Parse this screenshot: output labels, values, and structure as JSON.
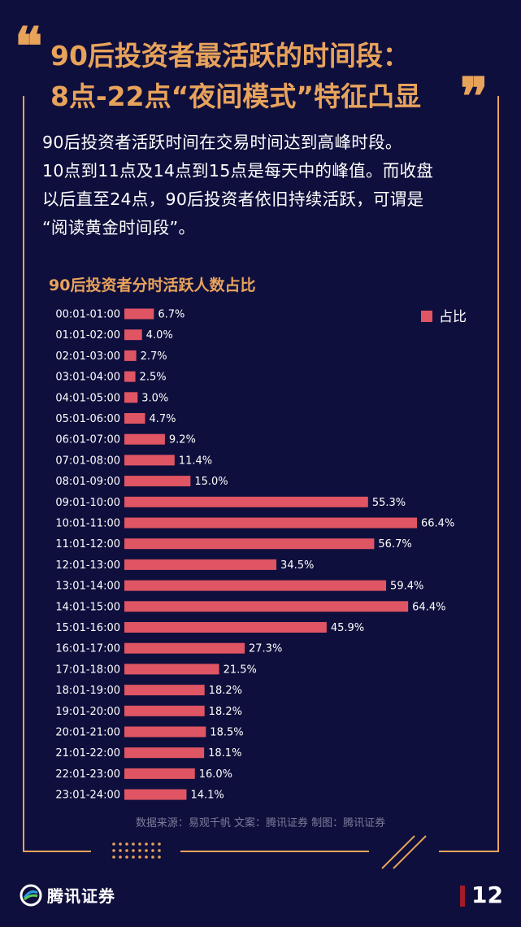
{
  "title": {
    "line1": "90后投资者最活跃的时间段：",
    "line2": "8点-22点“夜间模式”特征凸显"
  },
  "intro_lines": [
    "90后投资者活跃时间在交易时间达到高峰时段。",
    "10点到11点及14点到15点是每天中的峰值。而收盘",
    "以后直至24点，90后投资者依旧持续活跃，可谓是",
    "“阅读黄金时间段”。"
  ],
  "chart_data": {
    "type": "bar",
    "orientation": "horizontal",
    "title": "90后投资者分时活跃人数占比",
    "legend": {
      "label": "占比",
      "position": "top-right"
    },
    "categories": [
      "00:01-01:00",
      "01:01-02:00",
      "02:01-03:00",
      "03:01-04:00",
      "04:01-05:00",
      "05:01-06:00",
      "06:01-07:00",
      "07:01-08:00",
      "08:01-09:00",
      "09:01-10:00",
      "10:01-11:00",
      "11:01-12:00",
      "12:01-13:00",
      "13:01-14:00",
      "14:01-15:00",
      "15:01-16:00",
      "16:01-17:00",
      "17:01-18:00",
      "18:01-19:00",
      "19:01-20:00",
      "20:01-21:00",
      "21:01-22:00",
      "22:01-23:00",
      "23:01-24:00"
    ],
    "values": [
      6.7,
      4.0,
      2.7,
      2.5,
      3.0,
      4.7,
      9.2,
      11.4,
      15.0,
      55.3,
      66.4,
      56.7,
      34.5,
      59.4,
      64.4,
      45.9,
      27.3,
      21.5,
      18.2,
      18.2,
      18.5,
      18.1,
      16.0,
      14.1
    ],
    "value_labels": [
      "6.7%",
      "4.0%",
      "2.7%",
      "2.5%",
      "3.0%",
      "4.7%",
      "9.2%",
      "11.4%",
      "15.0%",
      "55.3%",
      "66.4%",
      "56.7%",
      "34.5%",
      "59.4%",
      "64.4%",
      "45.9%",
      "27.3%",
      "21.5%",
      "18.2%",
      "18.2%",
      "18.5%",
      "18.1%",
      "16.0%",
      "14.1%"
    ],
    "xlim": [
      0,
      70
    ],
    "bar_color": "#e05563",
    "grid": false
  },
  "source": "数据来源：易观千帆  文案：腾讯证券  制图：腾讯证券",
  "footer": {
    "brand": "腾讯证券",
    "page_number": "12"
  },
  "colors": {
    "background": "#0f0f3d",
    "accent": "#e8a35b",
    "bar": "#e05563"
  }
}
